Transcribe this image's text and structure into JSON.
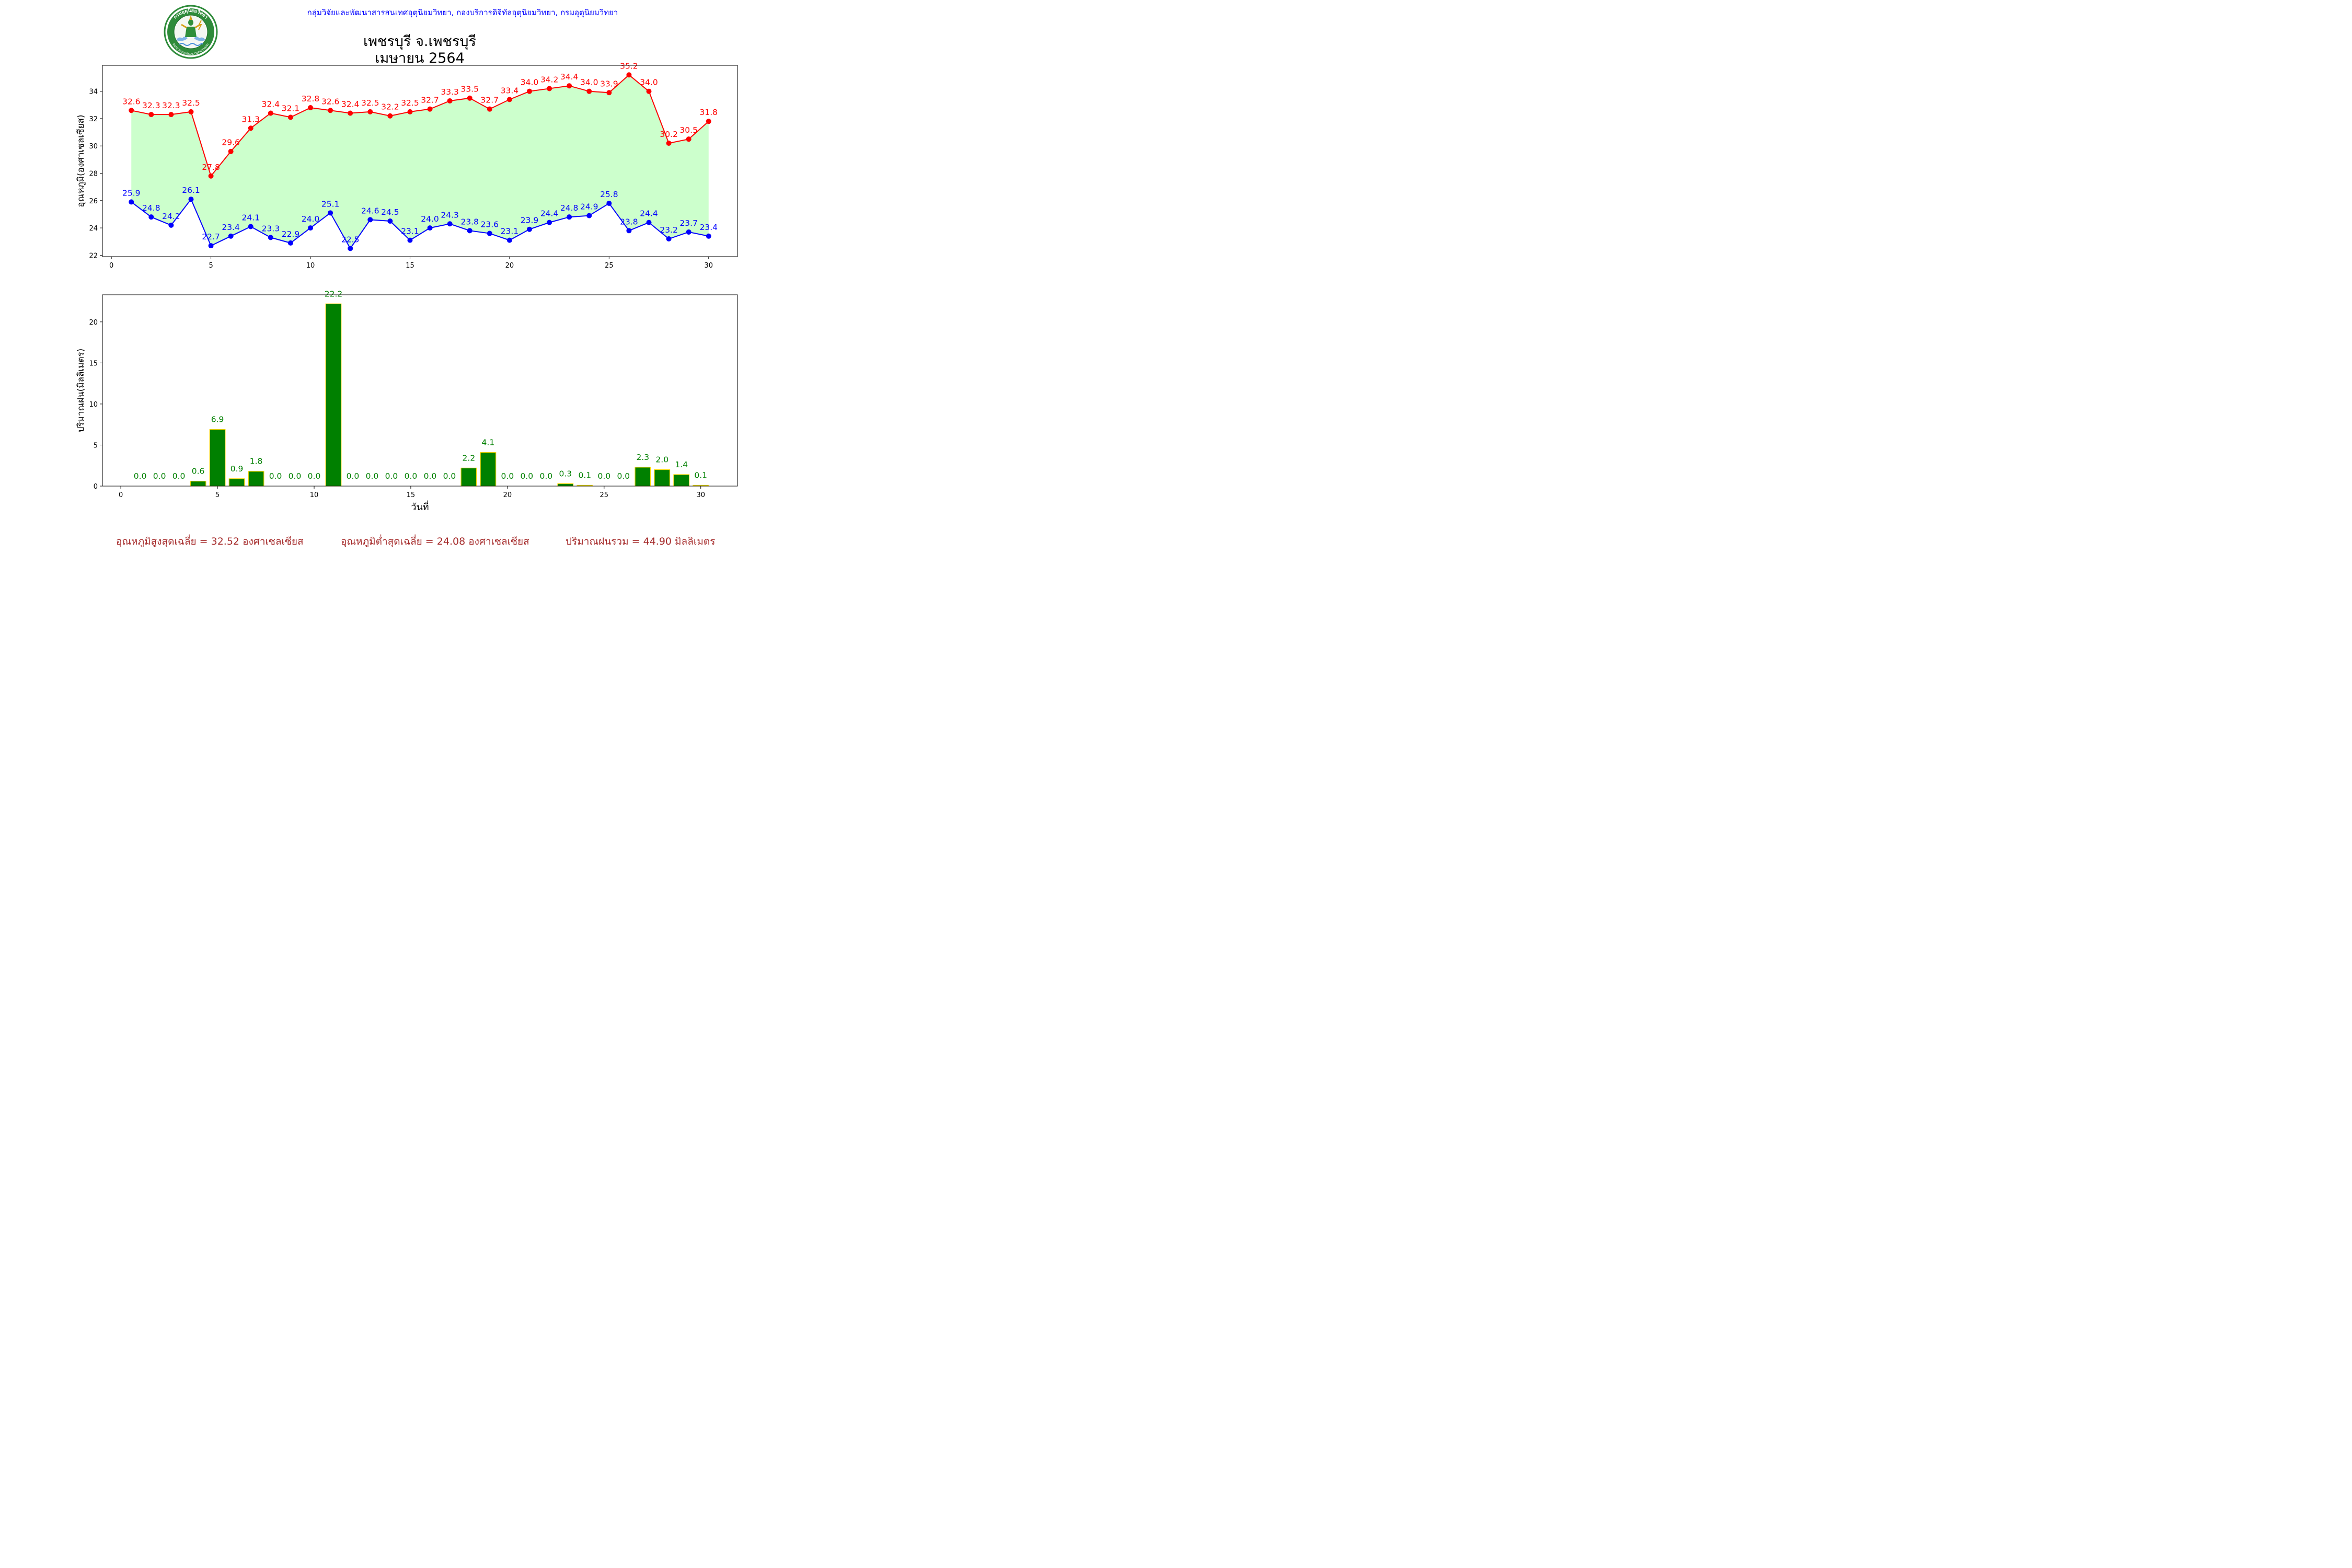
{
  "header": {
    "department_text": "กลุ่มวิจัยและพัฒนาสารสนเทศอุตุนิยมวิทยา, กองบริการดิจิทัลอุตุนิยมวิทยา, กรมอุตุนิยมวิทยา",
    "logo": {
      "icon": "meteorological-department-seal-icon",
      "ring_text_top": "กรมอุตุนิยมวิทยา",
      "ring_text_bottom": "METEOROLOGICAL DEPARTMENT"
    }
  },
  "title": {
    "line1": "เพชรบุรี จ.เพชรบุรี",
    "line2": "เมษายน 2564"
  },
  "footer": {
    "max_avg": "อุณหภูมิสูงสุดเฉลี่ย = 32.52 องศาเซลเซียส",
    "min_avg": "อุณหภูมิต่ำสุดเฉลี่ย = 24.08 องศาเซลเซียส",
    "rain_total": "ปริมาณฝนรวม = 44.90 มิลลิเมตร"
  },
  "colors": {
    "max_line": "#ff0000",
    "min_line": "#0000ff",
    "fill": "#ccffcc",
    "bar_fill": "#008000",
    "bar_edge": "#ffd700",
    "bar_label": "#008000",
    "footer_text": "#a52a2a",
    "logo_green": "#2e8b3a"
  },
  "chart_data": [
    {
      "type": "line",
      "x": [
        1,
        2,
        3,
        4,
        5,
        6,
        7,
        8,
        9,
        10,
        11,
        12,
        13,
        14,
        15,
        16,
        17,
        18,
        19,
        20,
        21,
        22,
        23,
        24,
        25,
        26,
        27,
        28,
        29,
        30
      ],
      "series": [
        {
          "values": [
            32.6,
            32.3,
            32.3,
            32.5,
            27.8,
            29.6,
            31.3,
            32.4,
            32.1,
            32.8,
            32.6,
            32.4,
            32.5,
            32.2,
            32.5,
            32.7,
            33.3,
            33.5,
            32.7,
            33.4,
            34.0,
            34.2,
            34.4,
            34.0,
            33.9,
            35.2,
            34.0,
            30.2,
            30.5,
            31.8
          ],
          "color": "#ff0000",
          "labels": [
            "32.6",
            "32.3",
            "32.3",
            "32.5",
            "27.8",
            "29.6",
            "31.3",
            "32.4",
            "32.1",
            "32.8",
            "32.6",
            "32.4",
            "32.5",
            "32.2",
            "32.5",
            "32.7",
            "33.3",
            "33.5",
            "32.7",
            "33.4",
            "34.0",
            "34.2",
            "34.4",
            "34.0",
            "33.9",
            "35.2",
            "34.0",
            "30.2",
            "30.5",
            "31.8"
          ]
        },
        {
          "values": [
            25.9,
            24.8,
            24.2,
            26.1,
            22.7,
            23.4,
            24.1,
            23.3,
            22.9,
            24.0,
            25.1,
            22.5,
            24.6,
            24.5,
            23.1,
            24.0,
            24.3,
            23.8,
            23.6,
            23.1,
            23.9,
            24.4,
            24.8,
            24.9,
            25.8,
            23.8,
            24.4,
            23.2,
            23.7,
            23.4
          ],
          "color": "#0000ff",
          "labels": [
            "25.9",
            "24.8",
            "24.2",
            "26.1",
            "22.7",
            "23.4",
            "24.1",
            "23.3",
            "22.9",
            "24.0",
            "25.1",
            "22.5",
            "24.6",
            "24.5",
            "23.1",
            "24.0",
            "24.3",
            "23.8",
            "23.6",
            "23.1",
            "23.9",
            "24.4",
            "24.8",
            "24.9",
            "25.8",
            "23.8",
            "24.4",
            "23.2",
            "23.7",
            "23.4"
          ]
        }
      ],
      "fill_between": true,
      "ylabel": "อุณหภูมิ(องศาเซลเซียส)",
      "xlim": [
        -0.45,
        31.45
      ],
      "ylim": [
        21.9,
        35.9
      ],
      "xticks": [
        0,
        5,
        10,
        15,
        20,
        25,
        30
      ],
      "yticks": [
        22,
        24,
        26,
        28,
        30,
        32,
        34
      ],
      "grid": false
    },
    {
      "type": "bar",
      "x": [
        1,
        2,
        3,
        4,
        5,
        6,
        7,
        8,
        9,
        10,
        11,
        12,
        13,
        14,
        15,
        16,
        17,
        18,
        19,
        20,
        21,
        22,
        23,
        24,
        25,
        26,
        27,
        28,
        29,
        30
      ],
      "values": [
        0.0,
        0.0,
        0.0,
        0.6,
        6.9,
        0.9,
        1.8,
        0.0,
        0.0,
        0.0,
        22.2,
        0.0,
        0.0,
        0.0,
        0.0,
        0.0,
        0.0,
        2.2,
        4.1,
        0.0,
        0.0,
        0.0,
        0.3,
        0.1,
        0.0,
        0.0,
        2.3,
        2.0,
        1.4,
        0.1
      ],
      "labels": [
        "0.0",
        "0.0",
        "0.0",
        "0.6",
        "6.9",
        "0.9",
        "1.8",
        "0.0",
        "0.0",
        "0.0",
        "22.2",
        "0.0",
        "0.0",
        "0.0",
        "0.0",
        "0.0",
        "0.0",
        "2.2",
        "4.1",
        "0.0",
        "0.0",
        "0.0",
        "0.3",
        "0.1",
        "0.0",
        "0.0",
        "2.3",
        "2.0",
        "1.4",
        "0.1"
      ],
      "xlabel": "วันที่",
      "ylabel": "ปริมาณฝน(มิลลิเมตร)",
      "xlim": [
        -0.95,
        31.9
      ],
      "ylim": [
        0,
        23.3
      ],
      "xticks": [
        0,
        5,
        10,
        15,
        20,
        25,
        30
      ],
      "yticks": [
        0,
        5,
        10,
        15,
        20
      ],
      "grid": false
    }
  ]
}
